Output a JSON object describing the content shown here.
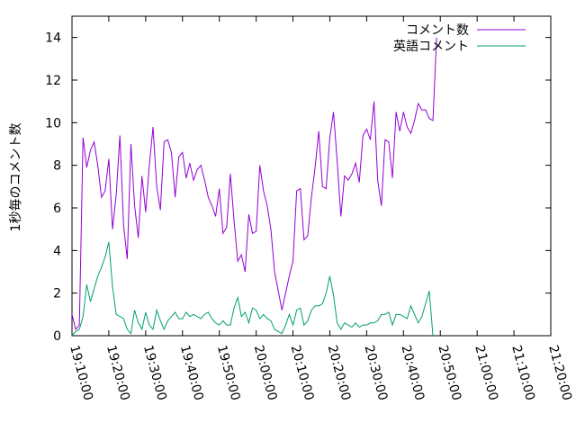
{
  "chart_data": {
    "type": "line",
    "ylabel": "1秒毎のコメント数",
    "xlim": [
      "19:10:00",
      "21:20:00"
    ],
    "ylim": [
      0,
      15
    ],
    "xticks": [
      "19:10:00",
      "19:20:00",
      "19:30:00",
      "19:40:00",
      "19:50:00",
      "20:00:00",
      "20:10:00",
      "20:20:00",
      "20:30:00",
      "20:40:00",
      "20:50:00",
      "21:00:00",
      "21:10:00",
      "21:20:00"
    ],
    "yticks": [
      0,
      2,
      4,
      6,
      8,
      10,
      12,
      14
    ],
    "grid": false,
    "legend_position": "top-right",
    "sample_interval": "1 minute",
    "start_time": "19:10:00",
    "series": [
      {
        "name": "コメント数",
        "color": "#9400d3",
        "values": [
          1.0,
          0.3,
          0.5,
          9.3,
          7.9,
          8.7,
          9.1,
          8.0,
          6.5,
          6.8,
          8.3,
          5.0,
          6.6,
          9.4,
          5.2,
          3.6,
          9.0,
          6.1,
          4.6,
          7.5,
          5.8,
          8.0,
          9.8,
          7.0,
          5.9,
          9.1,
          9.2,
          8.6,
          6.5,
          8.4,
          8.6,
          7.4,
          8.1,
          7.3,
          7.8,
          8.0,
          7.3,
          6.5,
          6.1,
          5.6,
          6.9,
          4.8,
          5.1,
          7.6,
          5.4,
          3.5,
          3.8,
          3.0,
          5.7,
          4.8,
          4.9,
          8.0,
          6.8,
          6.1,
          5.0,
          3.0,
          2.1,
          1.2,
          2.0,
          2.8,
          3.5,
          6.8,
          6.9,
          4.5,
          4.7,
          6.5,
          7.9,
          9.6,
          7.0,
          6.9,
          9.3,
          10.5,
          8.2,
          5.6,
          7.5,
          7.3,
          7.6,
          8.1,
          7.2,
          9.4,
          9.7,
          9.2,
          11.0,
          7.3,
          6.1,
          9.2,
          9.1,
          7.4,
          10.5,
          9.6,
          10.5,
          9.8,
          9.5,
          10.1,
          10.9,
          10.6,
          10.6,
          10.2,
          10.1,
          14.0
        ]
      },
      {
        "name": "英語コメント",
        "color": "#009e73",
        "values": [
          0.0,
          0.2,
          0.3,
          0.9,
          2.4,
          1.6,
          2.2,
          2.8,
          3.2,
          3.7,
          4.4,
          2.3,
          1.0,
          0.9,
          0.8,
          0.3,
          0.1,
          1.2,
          0.6,
          0.3,
          1.1,
          0.5,
          0.3,
          1.2,
          0.7,
          0.3,
          0.7,
          0.9,
          1.1,
          0.8,
          0.8,
          1.1,
          0.9,
          1.0,
          0.9,
          0.8,
          1.0,
          1.1,
          0.8,
          0.6,
          0.5,
          0.7,
          0.5,
          0.5,
          1.3,
          1.8,
          0.9,
          1.1,
          0.6,
          1.3,
          1.2,
          0.8,
          1.0,
          0.8,
          0.7,
          0.3,
          0.2,
          0.1,
          0.5,
          1.0,
          0.5,
          1.2,
          1.3,
          0.5,
          0.7,
          1.2,
          1.4,
          1.4,
          1.5,
          2.0,
          2.8,
          1.9,
          0.6,
          0.3,
          0.6,
          0.5,
          0.4,
          0.6,
          0.4,
          0.5,
          0.5,
          0.6,
          0.6,
          0.7,
          1.0,
          1.0,
          1.1,
          0.5,
          1.0,
          1.0,
          0.9,
          0.8,
          1.4,
          1.0,
          0.6,
          0.9,
          1.5,
          2.1,
          0.0
        ]
      }
    ]
  }
}
